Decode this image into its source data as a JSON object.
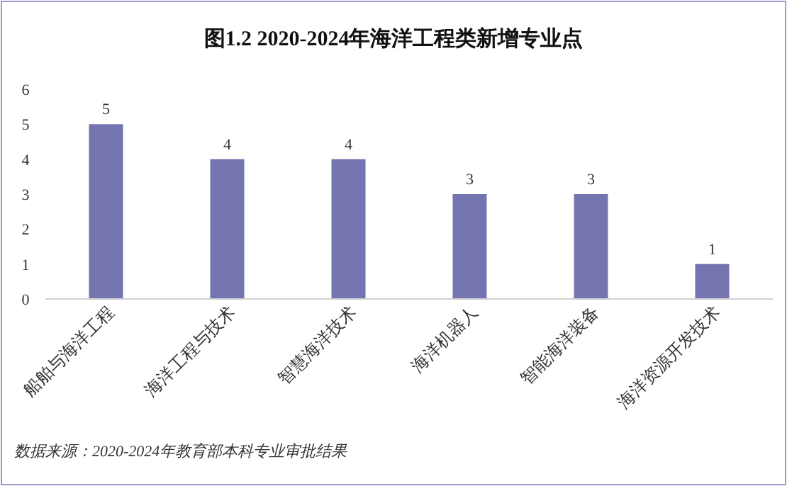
{
  "chart_data": {
    "type": "bar",
    "title": "图1.2  2020-2024年海洋工程类新增专业点",
    "categories": [
      "船舶与海洋工程",
      "海洋工程与技术",
      "智慧海洋技术",
      "海洋机器人",
      "智能海洋装备",
      "海洋资源开发技术"
    ],
    "values": [
      5,
      4,
      4,
      3,
      3,
      1
    ],
    "color": "#7474b0",
    "data_labels": true,
    "ylim": [
      0,
      6
    ],
    "yticks": [
      0,
      1,
      2,
      3,
      4,
      5,
      6
    ],
    "grid": false,
    "annotations": [
      "数据来源：2020-2024年教育部本科专业审批结果"
    ]
  }
}
